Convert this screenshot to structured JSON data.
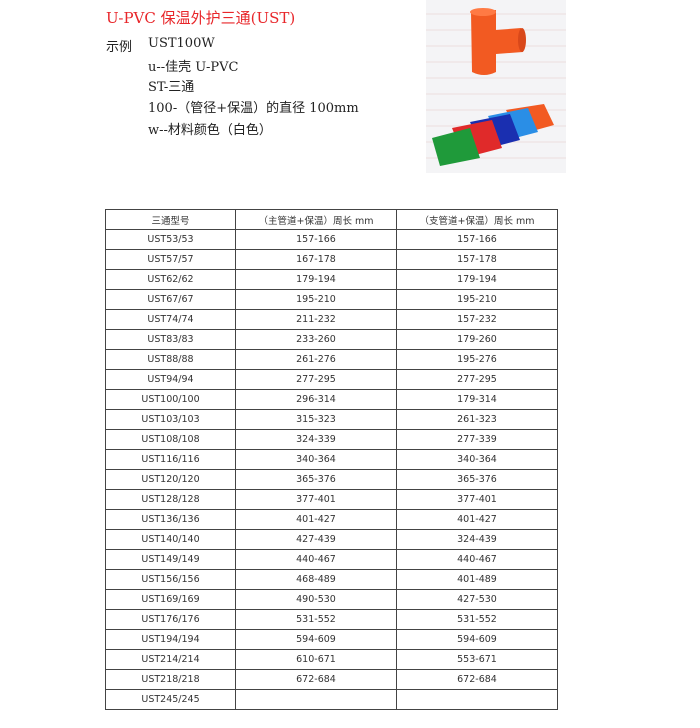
{
  "title": "U-PVC 保温外护三通(UST)",
  "example": {
    "label": "示例",
    "code": "UST100W",
    "lines": [
      "u--佳壳 U-PVC",
      "ST-三通",
      "100-（管径+保温）的直径 100mm",
      "w--材料颜色（白色）"
    ]
  },
  "colors": {
    "title": "#e8262a",
    "orange": "#f25a22",
    "green": "#1f9a3a",
    "red": "#e02a2a",
    "navy": "#1a2fb0",
    "blue": "#2a8ee6"
  },
  "table": {
    "headers": [
      "三通型号",
      "（主管道+保温）周长 mm",
      "（支管道+保温）周长 mm"
    ],
    "rows": [
      [
        "UST53/53",
        "157-166",
        "157-166"
      ],
      [
        "UST57/57",
        "167-178",
        "157-178"
      ],
      [
        "UST62/62",
        "179-194",
        "179-194"
      ],
      [
        "UST67/67",
        "195-210",
        "195-210"
      ],
      [
        "UST74/74",
        "211-232",
        "157-232"
      ],
      [
        "UST83/83",
        "233-260",
        "179-260"
      ],
      [
        "UST88/88",
        "261-276",
        "195-276"
      ],
      [
        "UST94/94",
        "277-295",
        "277-295"
      ],
      [
        "UST100/100",
        "296-314",
        "179-314"
      ],
      [
        "UST103/103",
        "315-323",
        "261-323"
      ],
      [
        "UST108/108",
        "324-339",
        "277-339"
      ],
      [
        "UST116/116",
        "340-364",
        "340-364"
      ],
      [
        "UST120/120",
        "365-376",
        "365-376"
      ],
      [
        "UST128/128",
        "377-401",
        "377-401"
      ],
      [
        "UST136/136",
        "401-427",
        "401-427"
      ],
      [
        "UST140/140",
        "427-439",
        "324-439"
      ],
      [
        "UST149/149",
        "440-467",
        "440-467"
      ],
      [
        "UST156/156",
        "468-489",
        "401-489"
      ],
      [
        "UST169/169",
        "490-530",
        "427-530"
      ],
      [
        "UST176/176",
        "531-552",
        "531-552"
      ],
      [
        "UST194/194",
        "594-609",
        "594-609"
      ],
      [
        "UST214/214",
        "610-671",
        "553-671"
      ],
      [
        "UST218/218",
        "672-684",
        "672-684"
      ],
      [
        "UST245/245",
        "",
        ""
      ]
    ]
  }
}
